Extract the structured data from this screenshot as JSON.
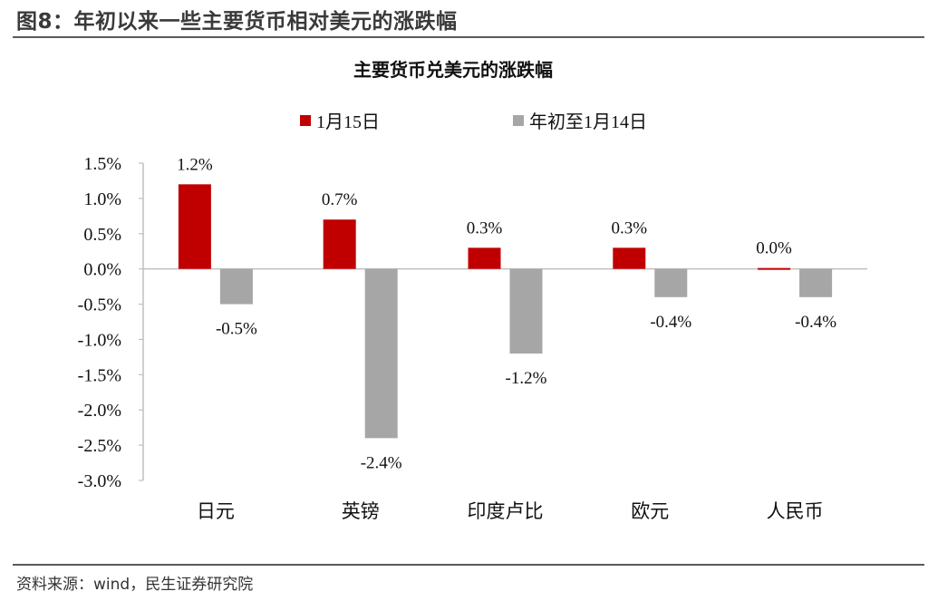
{
  "figure": {
    "title": "图8：年初以来一些主要货币相对美元的涨跌幅",
    "source": "资料来源：wind，民生证券研究院"
  },
  "colors": {
    "series1": "#C00000",
    "series2": "#A6A6A6",
    "axis": "#BFBFBF",
    "rule": "#5a5a5a"
  },
  "chart_data": {
    "type": "bar",
    "title": "主要货币兑美元的涨跌幅",
    "categories": [
      "日元",
      "英镑",
      "印度卢比",
      "欧元",
      "人民币"
    ],
    "series": [
      {
        "name": "1月15日",
        "values": [
          1.2,
          0.7,
          0.3,
          0.3,
          0.0
        ],
        "labels": [
          "1.2%",
          "0.7%",
          "0.3%",
          "0.3%",
          "0.0%"
        ]
      },
      {
        "name": "年初至1月14日",
        "values": [
          -0.5,
          -2.4,
          -1.2,
          -0.4,
          -0.4
        ],
        "labels": [
          "-0.5%",
          "-2.4%",
          "-1.2%",
          "-0.4%",
          "-0.4%"
        ]
      }
    ],
    "yticks": [
      "1.5%",
      "1.0%",
      "0.5%",
      "0.0%",
      "-0.5%",
      "-1.0%",
      "-1.5%",
      "-2.0%",
      "-2.5%",
      "-3.0%"
    ],
    "ylim": [
      -3.0,
      1.5
    ],
    "legend_position": "top-center",
    "grid": false
  }
}
